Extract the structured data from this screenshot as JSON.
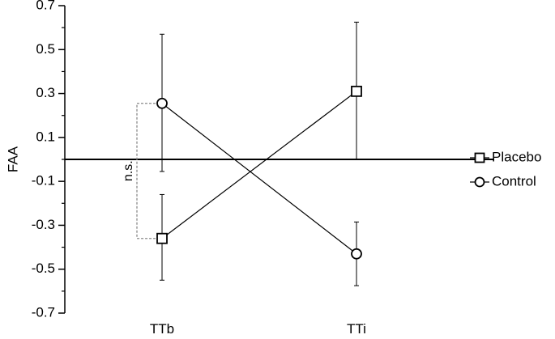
{
  "chart_data": {
    "type": "line",
    "categories": [
      "TTb",
      "TTi"
    ],
    "ylabel": "FAA",
    "ylim": [
      -0.7,
      0.7
    ],
    "yticks": [
      -0.7,
      -0.5,
      -0.3,
      -0.1,
      0.1,
      0.3,
      0.5,
      0.7
    ],
    "ytick_labels": [
      "-0.7",
      "-0.5",
      "-0.3",
      "-0.1",
      "0.1",
      "0.3",
      "0.5",
      "0.7"
    ],
    "reference_line": 0,
    "grid": false,
    "legend_position": "right",
    "series": [
      {
        "name": "Placebo",
        "marker": "square",
        "values": [
          -0.36,
          0.31
        ],
        "error_upper": [
          -0.16,
          0.625
        ],
        "error_lower": [
          -0.55,
          0.0
        ]
      },
      {
        "name": "Control",
        "marker": "circle",
        "values": [
          0.255,
          -0.43
        ],
        "error_upper": [
          0.57,
          -0.285
        ],
        "error_lower": [
          -0.055,
          -0.575
        ]
      }
    ],
    "annotations": [
      {
        "text": "n.s.",
        "type": "bracket",
        "category": "TTb",
        "from": 0.255,
        "to": -0.36
      }
    ]
  }
}
